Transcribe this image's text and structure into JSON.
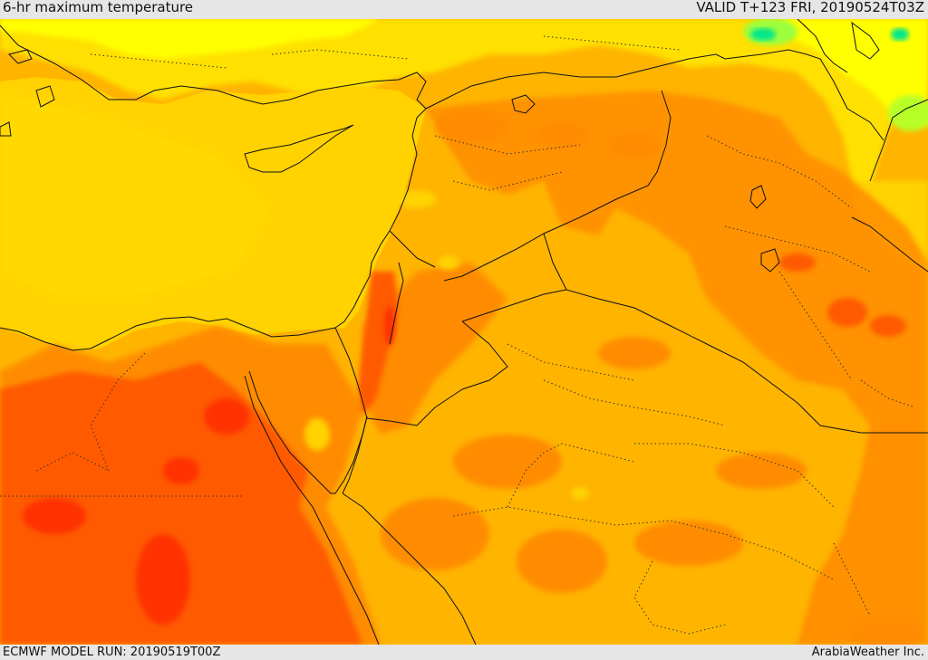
{
  "header": {
    "title": "6-hr maximum temperature",
    "valid": "VALID T+123 FRI, 20190524T03Z"
  },
  "footer": {
    "model_run": "ECMWF MODEL RUN: 20190519T00Z",
    "credit": "ArabiaWeather Inc."
  },
  "colors": {
    "sea_mild": "#ffd200",
    "light_yellow": "#ffe000",
    "bright_yellow": "#ffff00",
    "warm": "#ffb400",
    "hot": "#ff8c00",
    "very_hot": "#ff5a00",
    "extreme": "#ff3200",
    "cool_green": "#9bff3c",
    "cold_green": "#00e68c",
    "border": "#111111"
  }
}
